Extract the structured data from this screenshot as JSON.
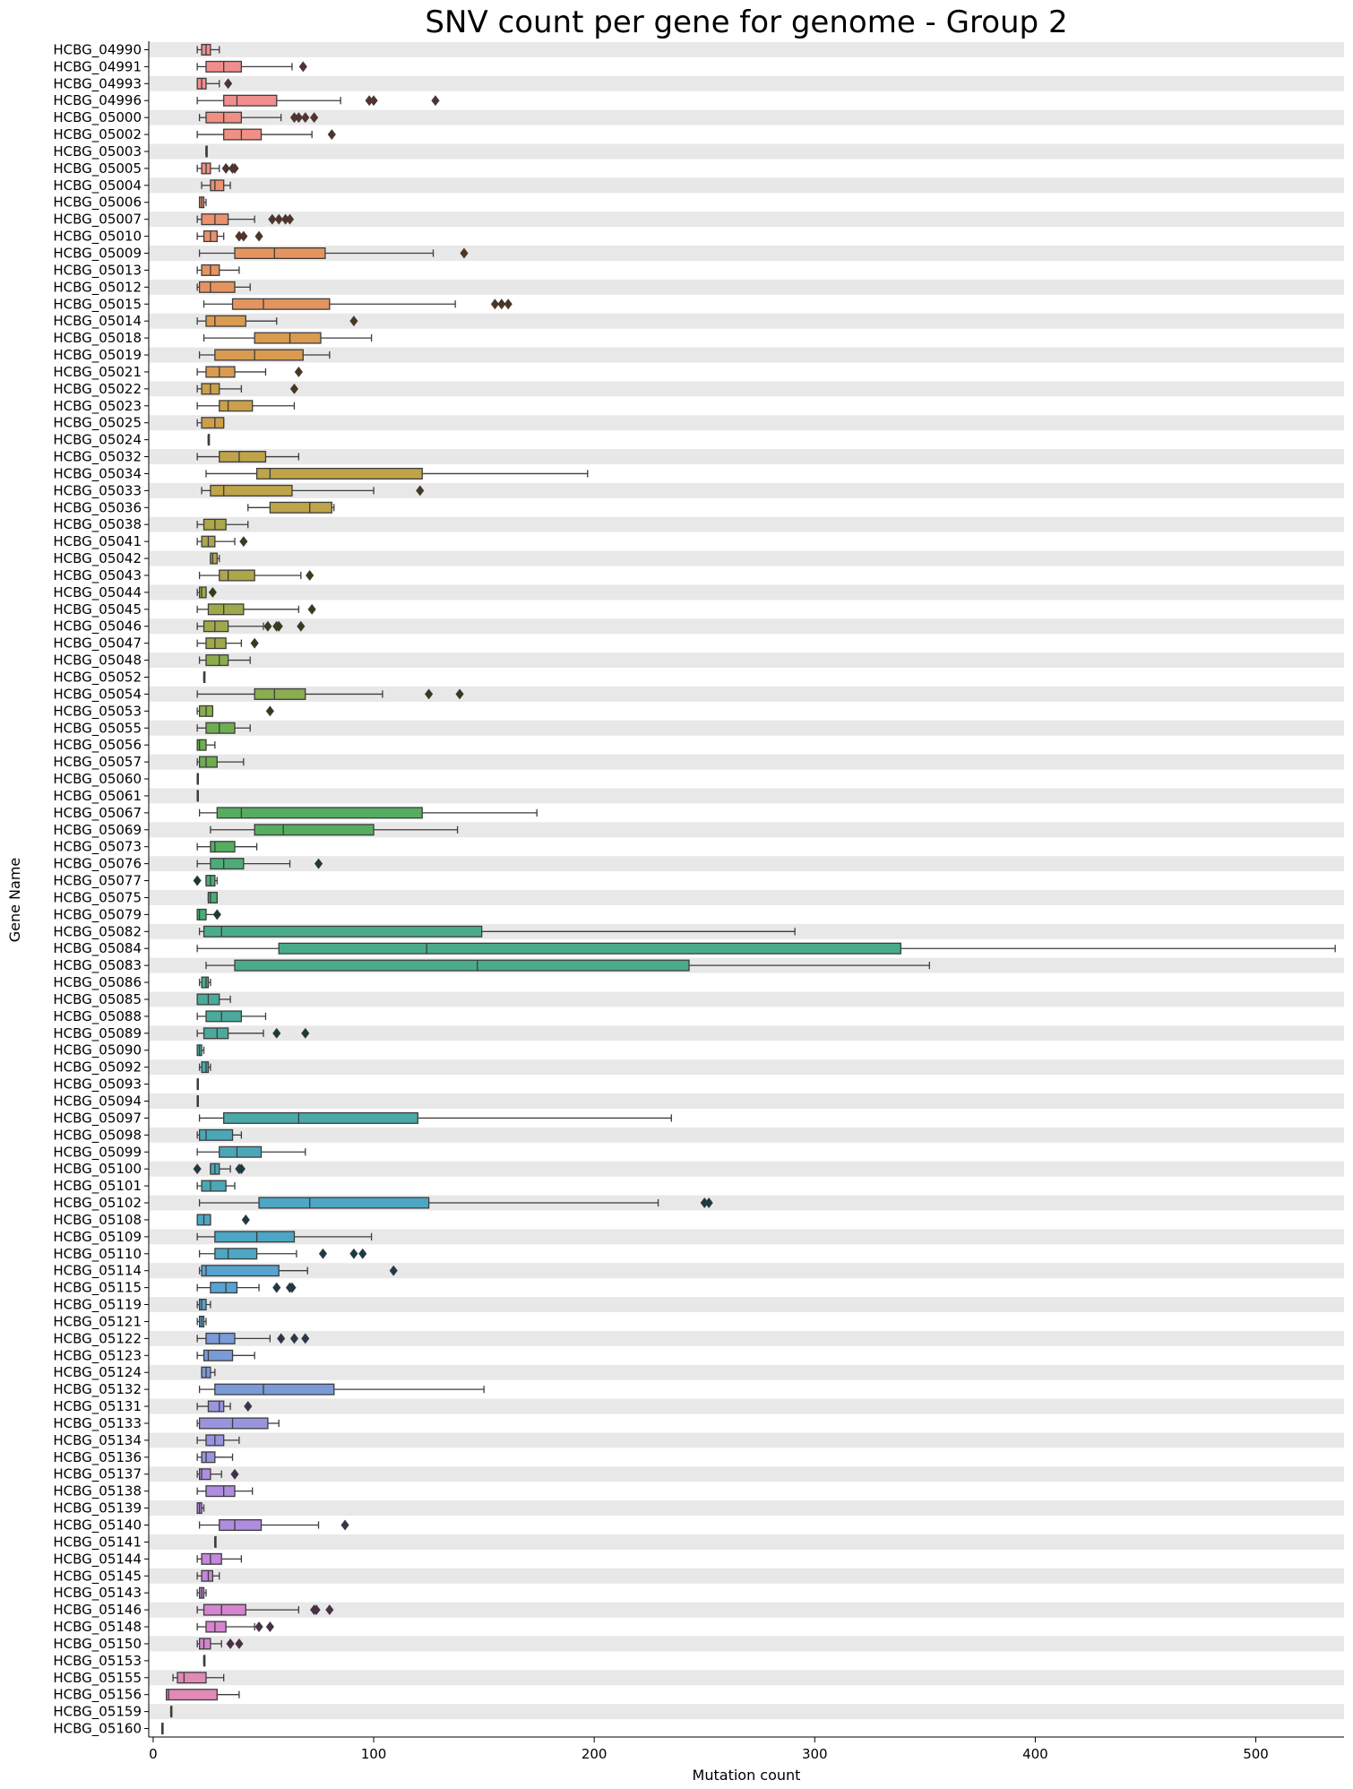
{
  "chart_data": {
    "type": "boxplot",
    "orientation": "horizontal",
    "title": "SNV count per gene for genome - Group 2",
    "xlabel": "Mutation count",
    "ylabel": "Gene Name",
    "xlim": [
      -2,
      540
    ],
    "xticks": [
      0,
      100,
      200,
      300,
      400,
      500
    ],
    "row_bands": "alternating light grey",
    "categories": [
      "HCBG_04990",
      "HCBG_04991",
      "HCBG_04993",
      "HCBG_04996",
      "HCBG_05000",
      "HCBG_05002",
      "HCBG_05003",
      "HCBG_05005",
      "HCBG_05004",
      "HCBG_05006",
      "HCBG_05007",
      "HCBG_05010",
      "HCBG_05009",
      "HCBG_05013",
      "HCBG_05012",
      "HCBG_05015",
      "HCBG_05014",
      "HCBG_05018",
      "HCBG_05019",
      "HCBG_05021",
      "HCBG_05022",
      "HCBG_05023",
      "HCBG_05025",
      "HCBG_05024",
      "HCBG_05032",
      "HCBG_05034",
      "HCBG_05033",
      "HCBG_05036",
      "HCBG_05038",
      "HCBG_05041",
      "HCBG_05042",
      "HCBG_05043",
      "HCBG_05044",
      "HCBG_05045",
      "HCBG_05046",
      "HCBG_05047",
      "HCBG_05048",
      "HCBG_05052",
      "HCBG_05054",
      "HCBG_05053",
      "HCBG_05055",
      "HCBG_05056",
      "HCBG_05057",
      "HCBG_05060",
      "HCBG_05061",
      "HCBG_05067",
      "HCBG_05069",
      "HCBG_05073",
      "HCBG_05076",
      "HCBG_05077",
      "HCBG_05075",
      "HCBG_05079",
      "HCBG_05082",
      "HCBG_05084",
      "HCBG_05083",
      "HCBG_05086",
      "HCBG_05085",
      "HCBG_05088",
      "HCBG_05089",
      "HCBG_05090",
      "HCBG_05092",
      "HCBG_05093",
      "HCBG_05094",
      "HCBG_05097",
      "HCBG_05098",
      "HCBG_05099",
      "HCBG_05100",
      "HCBG_05101",
      "HCBG_05102",
      "HCBG_05108",
      "HCBG_05109",
      "HCBG_05110",
      "HCBG_05114",
      "HCBG_05115",
      "HCBG_05119",
      "HCBG_05121",
      "HCBG_05122",
      "HCBG_05123",
      "HCBG_05124",
      "HCBG_05132",
      "HCBG_05131",
      "HCBG_05133",
      "HCBG_05134",
      "HCBG_05136",
      "HCBG_05137",
      "HCBG_05138",
      "HCBG_05139",
      "HCBG_05140",
      "HCBG_05141",
      "HCBG_05144",
      "HCBG_05145",
      "HCBG_05143",
      "HCBG_05146",
      "HCBG_05148",
      "HCBG_05150",
      "HCBG_05153",
      "HCBG_05155",
      "HCBG_05156",
      "HCBG_05159",
      "HCBG_05160"
    ],
    "boxes": [
      [
        20,
        22,
        24,
        26,
        30,
        []
      ],
      [
        20,
        24,
        32,
        40,
        63,
        [
          68
        ]
      ],
      [
        20,
        20,
        22,
        24,
        30,
        [
          34
        ]
      ],
      [
        20,
        32,
        38,
        56,
        85,
        [
          98,
          100,
          128
        ]
      ],
      [
        21,
        24,
        32,
        40,
        58,
        [
          64,
          66,
          69,
          73
        ]
      ],
      [
        20,
        32,
        40,
        49,
        72,
        [
          81
        ]
      ],
      [
        24,
        24,
        24,
        24,
        24,
        []
      ],
      [
        20,
        22,
        24,
        26,
        30,
        [
          33,
          36,
          37
        ]
      ],
      [
        22,
        26,
        28,
        32,
        35,
        []
      ],
      [
        21,
        21,
        22,
        23,
        24,
        []
      ],
      [
        20,
        22,
        28,
        34,
        46,
        [
          54,
          57,
          60,
          62
        ]
      ],
      [
        20,
        23,
        26,
        29,
        32,
        [
          39,
          41,
          48
        ]
      ],
      [
        21,
        37,
        55,
        78,
        127,
        [
          141
        ]
      ],
      [
        20,
        22,
        26,
        30,
        39,
        []
      ],
      [
        20,
        21,
        26,
        37,
        44,
        []
      ],
      [
        23,
        36,
        50,
        80,
        137,
        [
          155,
          158,
          161
        ]
      ],
      [
        20,
        24,
        28,
        42,
        56,
        [
          91
        ]
      ],
      [
        23,
        46,
        62,
        76,
        99,
        []
      ],
      [
        21,
        28,
        46,
        68,
        80,
        []
      ],
      [
        20,
        24,
        30,
        37,
        51,
        [
          66
        ]
      ],
      [
        20,
        22,
        26,
        30,
        40,
        [
          64
        ]
      ],
      [
        20,
        30,
        34,
        45,
        64,
        []
      ],
      [
        20,
        22,
        28,
        32,
        32,
        []
      ],
      [
        25,
        25,
        25,
        25,
        25,
        []
      ],
      [
        20,
        30,
        39,
        51,
        66,
        []
      ],
      [
        24,
        47,
        53,
        122,
        197,
        []
      ],
      [
        22,
        26,
        32,
        63,
        100,
        [
          121
        ]
      ],
      [
        43,
        53,
        71,
        81,
        82,
        []
      ],
      [
        20,
        23,
        28,
        33,
        43,
        []
      ],
      [
        20,
        22,
        25,
        28,
        37,
        [
          41
        ]
      ],
      [
        26,
        26,
        27,
        29,
        30,
        []
      ],
      [
        21,
        30,
        34,
        46,
        67,
        [
          71
        ]
      ],
      [
        20,
        21,
        22,
        24,
        24,
        [
          27
        ]
      ],
      [
        20,
        25,
        32,
        41,
        66,
        [
          72
        ]
      ],
      [
        20,
        23,
        28,
        34,
        50,
        [
          52,
          56,
          57,
          67
        ]
      ],
      [
        20,
        24,
        28,
        33,
        40,
        [
          46
        ]
      ],
      [
        21,
        24,
        30,
        34,
        44,
        []
      ],
      [
        23,
        23,
        23,
        23,
        23,
        []
      ],
      [
        20,
        46,
        55,
        69,
        104,
        [
          125,
          139
        ]
      ],
      [
        20,
        21,
        24,
        27,
        27,
        [
          53
        ]
      ],
      [
        20,
        24,
        30,
        37,
        44,
        []
      ],
      [
        20,
        20,
        21,
        24,
        28,
        []
      ],
      [
        20,
        21,
        24,
        29,
        41,
        []
      ],
      [
        20,
        20,
        20,
        20,
        20,
        []
      ],
      [
        20,
        20,
        20,
        20,
        20,
        []
      ],
      [
        21,
        29,
        40,
        122,
        174,
        []
      ],
      [
        26,
        46,
        59,
        100,
        138,
        []
      ],
      [
        20,
        26,
        28,
        37,
        47,
        []
      ],
      [
        20,
        26,
        32,
        41,
        62,
        [
          75
        ]
      ],
      [
        24,
        24,
        26,
        28,
        29,
        [
          20
        ]
      ],
      [
        25,
        25,
        26,
        29,
        29,
        []
      ],
      [
        20,
        20,
        21,
        24,
        29,
        [
          29
        ]
      ],
      [
        21,
        23,
        31,
        149,
        291,
        []
      ],
      [
        20,
        57,
        124,
        339,
        536,
        []
      ],
      [
        24,
        37,
        147,
        243,
        352,
        []
      ],
      [
        21,
        22,
        24,
        25,
        26,
        []
      ],
      [
        20,
        20,
        25,
        30,
        35,
        []
      ],
      [
        20,
        24,
        31,
        40,
        51,
        []
      ],
      [
        20,
        23,
        29,
        34,
        50,
        [
          56,
          69
        ]
      ],
      [
        20,
        20,
        21,
        22,
        23,
        []
      ],
      [
        21,
        22,
        24,
        25,
        26,
        []
      ],
      [
        20,
        20,
        20,
        20,
        20,
        []
      ],
      [
        20,
        20,
        20,
        20,
        20,
        []
      ],
      [
        21,
        32,
        66,
        120,
        235,
        []
      ],
      [
        20,
        21,
        24,
        36,
        40,
        []
      ],
      [
        20,
        30,
        38,
        49,
        69,
        []
      ],
      [
        26,
        26,
        28,
        30,
        35,
        [
          20,
          39,
          40
        ]
      ],
      [
        20,
        22,
        26,
        33,
        37,
        []
      ],
      [
        21,
        48,
        71,
        125,
        229,
        [
          250,
          252
        ]
      ],
      [
        20,
        20,
        23,
        26,
        26,
        [
          42
        ]
      ],
      [
        20,
        28,
        47,
        64,
        99,
        []
      ],
      [
        21,
        28,
        34,
        47,
        65,
        [
          77,
          91,
          95
        ]
      ],
      [
        21,
        22,
        24,
        57,
        70,
        [
          109
        ]
      ],
      [
        20,
        26,
        33,
        38,
        48,
        [
          56,
          62,
          63
        ]
      ],
      [
        20,
        21,
        22,
        24,
        26,
        []
      ],
      [
        20,
        21,
        22,
        23,
        24,
        []
      ],
      [
        20,
        24,
        30,
        37,
        53,
        [
          58,
          64,
          69
        ]
      ],
      [
        20,
        23,
        25,
        36,
        46,
        []
      ],
      [
        22,
        22,
        24,
        26,
        28,
        []
      ],
      [
        21,
        28,
        50,
        82,
        150,
        []
      ],
      [
        20,
        25,
        30,
        32,
        35,
        [
          43
        ]
      ],
      [
        20,
        21,
        36,
        52,
        57,
        []
      ],
      [
        20,
        24,
        28,
        32,
        39,
        []
      ],
      [
        20,
        22,
        24,
        28,
        36,
        []
      ],
      [
        20,
        21,
        22,
        26,
        31,
        [
          37
        ]
      ],
      [
        20,
        24,
        32,
        37,
        45,
        []
      ],
      [
        20,
        20,
        21,
        22,
        23,
        []
      ],
      [
        21,
        30,
        37,
        49,
        75,
        [
          87
        ]
      ],
      [
        28,
        28,
        28,
        28,
        28,
        []
      ],
      [
        20,
        22,
        26,
        31,
        40,
        []
      ],
      [
        20,
        22,
        25,
        27,
        30,
        []
      ],
      [
        20,
        21,
        22,
        23,
        24,
        []
      ],
      [
        20,
        23,
        31,
        42,
        66,
        [
          73,
          74,
          80
        ]
      ],
      [
        20,
        24,
        28,
        33,
        46,
        [
          48,
          53
        ]
      ],
      [
        20,
        21,
        23,
        26,
        31,
        [
          35,
          39
        ]
      ],
      [
        23,
        23,
        23,
        23,
        23,
        []
      ],
      [
        9,
        11,
        14,
        24,
        32,
        []
      ],
      [
        6,
        6,
        7,
        29,
        39,
        []
      ],
      [
        8,
        8,
        8,
        8,
        8,
        []
      ],
      [
        4,
        4,
        4,
        4,
        4,
        []
      ]
    ],
    "palette": [
      "#f08e8e",
      "#f08f84",
      "#ec9170",
      "#e4955f",
      "#d99b50",
      "#cc9f4a",
      "#bfa449",
      "#aea74a",
      "#9eaa4a",
      "#8bad4f",
      "#6eae51",
      "#55ae60",
      "#4cac78",
      "#4aab8c",
      "#4aaa9b",
      "#4ba9aa",
      "#4ba7b8",
      "#4ca6c4",
      "#58a3d1",
      "#7a9ad8",
      "#9a94de",
      "#b08ddf",
      "#c488dc",
      "#d684cf",
      "#e08ab5",
      "#e98ca1"
    ]
  }
}
